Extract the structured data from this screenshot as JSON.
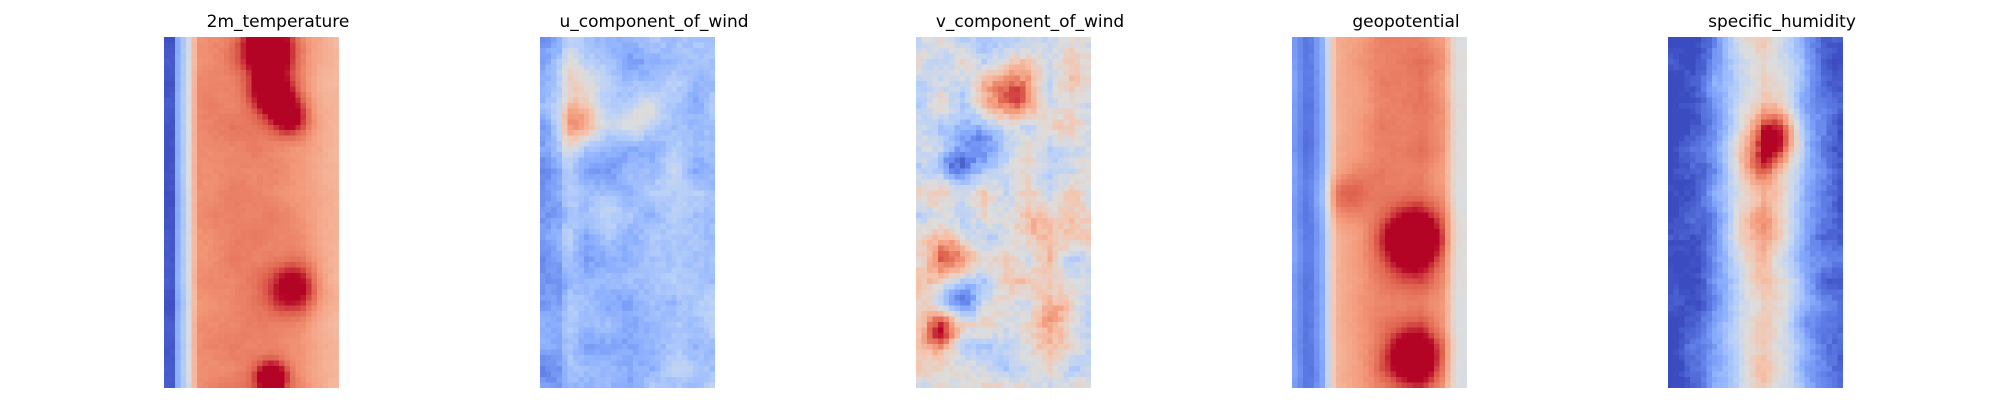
{
  "chart_data": [
    {
      "type": "heatmap",
      "title": "2m_temperature",
      "colormap": "coolwarm",
      "axes": "off",
      "pattern": {
        "kind": "bands",
        "profile": [
          [
            0,
            -0.95
          ],
          [
            0.04,
            -0.95
          ],
          [
            0.06,
            -0.55
          ],
          [
            0.12,
            -0.15
          ],
          [
            0.18,
            0.55
          ],
          [
            0.4,
            0.62
          ],
          [
            0.6,
            0.6
          ],
          [
            0.8,
            0.52
          ],
          [
            0.92,
            0.38
          ],
          [
            1,
            0.33
          ]
        ],
        "hot": [
          [
            0.6,
            0.03,
            0.95,
            0.05
          ],
          [
            0.62,
            0.15,
            0.85,
            0.04
          ],
          [
            0.72,
            0.22,
            0.65,
            0.04
          ],
          [
            0.62,
            0.98,
            0.9,
            0.03
          ],
          [
            0.75,
            0.72,
            0.6,
            0.05
          ]
        ],
        "noise": 0.06,
        "seed": 11
      }
    },
    {
      "type": "heatmap",
      "title": "u_component_of_wind",
      "colormap": "coolwarm",
      "axes": "off",
      "pattern": {
        "kind": "bands",
        "profile": [
          [
            0,
            -0.6
          ],
          [
            0.1,
            -0.55
          ],
          [
            0.15,
            -0.3
          ],
          [
            0.25,
            -0.45
          ],
          [
            0.35,
            -0.5
          ],
          [
            0.5,
            -0.55
          ],
          [
            0.65,
            -0.4
          ],
          [
            0.8,
            -0.3
          ],
          [
            0.9,
            -0.4
          ],
          [
            1,
            -0.3
          ]
        ],
        "hot": [
          [
            0.22,
            0.24,
            0.9,
            0.05
          ],
          [
            0.55,
            0.22,
            0.5,
            0.05
          ],
          [
            0.2,
            0.1,
            0.45,
            0.06
          ],
          [
            0.35,
            0.5,
            0.2,
            0.05
          ]
        ],
        "noise": 0.22,
        "seed": 23
      }
    },
    {
      "type": "heatmap",
      "title": "v_component_of_wind",
      "colormap": "coolwarm",
      "axes": "off",
      "pattern": {
        "kind": "bands",
        "profile": [
          [
            0,
            0.0
          ],
          [
            0.5,
            -0.05
          ],
          [
            1,
            0.0
          ]
        ],
        "hot": [
          [
            0.55,
            0.15,
            0.85,
            0.05
          ],
          [
            0.12,
            0.84,
            0.9,
            0.04
          ],
          [
            0.18,
            0.62,
            0.6,
            0.05
          ],
          [
            0.35,
            0.3,
            -0.6,
            0.05
          ],
          [
            0.2,
            0.35,
            -0.7,
            0.04
          ],
          [
            0.7,
            0.55,
            0.5,
            0.05
          ],
          [
            0.25,
            0.75,
            -0.6,
            0.05
          ],
          [
            0.8,
            0.8,
            0.5,
            0.05
          ]
        ],
        "noise": 0.38,
        "seed": 37
      }
    },
    {
      "type": "heatmap",
      "title": "geopotential",
      "colormap": "coolwarm",
      "axes": "off",
      "pattern": {
        "kind": "bands",
        "profile": [
          [
            0,
            -0.6
          ],
          [
            0.08,
            -0.85
          ],
          [
            0.16,
            -0.55
          ],
          [
            0.24,
            0.35
          ],
          [
            0.5,
            0.6
          ],
          [
            0.75,
            0.65
          ],
          [
            0.88,
            0.5
          ],
          [
            0.95,
            0.0
          ],
          [
            1,
            0.0
          ]
        ],
        "hot": [
          [
            0.7,
            0.58,
            0.95,
            0.06
          ],
          [
            0.7,
            0.92,
            0.9,
            0.05
          ],
          [
            0.3,
            0.45,
            0.3,
            0.05
          ]
        ],
        "noise": 0.06,
        "seed": 41
      }
    },
    {
      "type": "heatmap",
      "title": "specific_humidity",
      "colormap": "coolwarm",
      "axes": "off",
      "pattern": {
        "kind": "bands",
        "profile": [
          [
            0,
            -1.0
          ],
          [
            0.18,
            -0.85
          ],
          [
            0.3,
            -0.5
          ],
          [
            0.42,
            -0.05
          ],
          [
            0.55,
            0.2
          ],
          [
            0.68,
            -0.1
          ],
          [
            0.8,
            -0.55
          ],
          [
            0.9,
            -0.8
          ],
          [
            1,
            -0.9
          ]
        ],
        "hot": [
          [
            0.62,
            0.27,
            1.0,
            0.05
          ],
          [
            0.55,
            0.35,
            0.6,
            0.05
          ],
          [
            0.55,
            0.55,
            0.4,
            0.05
          ]
        ],
        "noise": 0.2,
        "seed": 53
      }
    }
  ]
}
